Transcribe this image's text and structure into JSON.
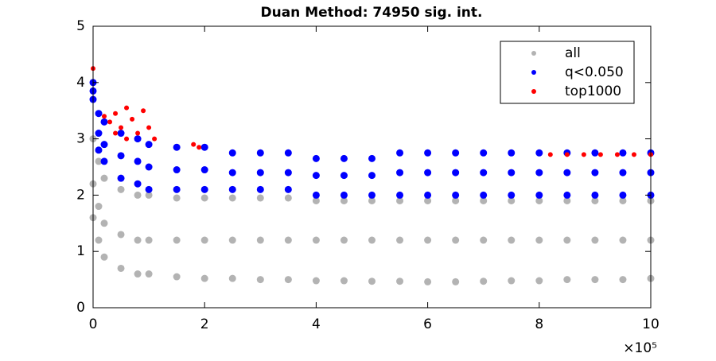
{
  "chart_data": {
    "type": "scatter",
    "title": "Duan Method: 74950 sig. int.",
    "xlim": [
      0,
      1000000
    ],
    "ylim": [
      0,
      5
    ],
    "xticks": [
      {
        "value": 0,
        "label": "0"
      },
      {
        "value": 200000,
        "label": "2"
      },
      {
        "value": 400000,
        "label": "4"
      },
      {
        "value": 600000,
        "label": "6"
      },
      {
        "value": 800000,
        "label": "8"
      },
      {
        "value": 1000000,
        "label": "10"
      }
    ],
    "yticks": [
      0,
      1,
      2,
      3,
      4,
      5
    ],
    "x_scale_label": "×10⁵",
    "legend": "upper right",
    "grid": false,
    "series": [
      {
        "name": "all",
        "color": "#b3b3b3",
        "x": [
          0,
          10000,
          20000,
          50000,
          80000,
          100000,
          150000,
          200000,
          250000,
          300000,
          350000,
          400000,
          450000,
          500000,
          550000,
          600000,
          650000,
          700000,
          750000,
          800000,
          850000,
          900000,
          950000,
          1000000,
          0,
          10000,
          20000,
          50000,
          80000,
          100000,
          150000,
          200000,
          250000,
          300000,
          350000,
          400000,
          450000,
          500000,
          550000,
          600000,
          650000,
          700000,
          750000,
          800000,
          850000,
          900000,
          950000,
          1000000,
          0,
          10000,
          20000,
          50000,
          80000,
          100000,
          150000,
          200000,
          250000,
          300000,
          350000,
          400000,
          450000,
          500000,
          550000,
          600000,
          650000,
          700000,
          750000,
          800000,
          850000,
          900000,
          950000,
          1000000
        ],
        "values": [
          1.6,
          1.2,
          0.9,
          0.7,
          0.6,
          0.6,
          0.55,
          0.52,
          0.52,
          0.5,
          0.5,
          0.48,
          0.48,
          0.47,
          0.47,
          0.46,
          0.46,
          0.47,
          0.48,
          0.48,
          0.5,
          0.5,
          0.5,
          0.52,
          2.2,
          1.8,
          1.5,
          1.3,
          1.2,
          1.2,
          1.2,
          1.2,
          1.2,
          1.2,
          1.2,
          1.2,
          1.2,
          1.2,
          1.2,
          1.2,
          1.2,
          1.2,
          1.2,
          1.2,
          1.2,
          1.2,
          1.2,
          1.2,
          3.0,
          2.6,
          2.3,
          2.1,
          2.0,
          2.0,
          1.95,
          1.95,
          1.95,
          1.95,
          1.95,
          1.9,
          1.9,
          1.9,
          1.9,
          1.9,
          1.9,
          1.9,
          1.9,
          1.9,
          1.9,
          1.9,
          1.9,
          1.9
        ]
      },
      {
        "name": "q<0.050",
        "color": "#0000ff",
        "x": [
          0,
          10000,
          20000,
          50000,
          80000,
          100000,
          150000,
          200000,
          250000,
          300000,
          350000,
          400000,
          450000,
          500000,
          550000,
          600000,
          650000,
          700000,
          750000,
          800000,
          850000,
          900000,
          950000,
          1000000,
          0,
          10000,
          20000,
          50000,
          80000,
          100000,
          150000,
          200000,
          250000,
          300000,
          350000,
          400000,
          450000,
          500000,
          550000,
          600000,
          650000,
          700000,
          750000,
          800000,
          850000,
          900000,
          950000,
          1000000,
          0,
          10000,
          20000,
          50000,
          80000,
          100000,
          150000,
          200000,
          250000,
          300000,
          350000,
          400000,
          450000,
          500000,
          550000,
          600000,
          650000,
          700000,
          750000,
          800000,
          850000,
          900000,
          950000,
          1000000
        ],
        "values": [
          4.0,
          3.45,
          3.3,
          3.1,
          3.0,
          2.9,
          2.85,
          2.85,
          2.75,
          2.75,
          2.75,
          2.65,
          2.65,
          2.65,
          2.75,
          2.75,
          2.75,
          2.75,
          2.75,
          2.75,
          2.75,
          2.75,
          2.75,
          2.75,
          3.85,
          3.1,
          2.9,
          2.7,
          2.6,
          2.5,
          2.45,
          2.45,
          2.4,
          2.4,
          2.4,
          2.35,
          2.35,
          2.35,
          2.4,
          2.4,
          2.4,
          2.4,
          2.4,
          2.4,
          2.4,
          2.4,
          2.4,
          2.4,
          3.7,
          2.8,
          2.6,
          2.3,
          2.2,
          2.1,
          2.1,
          2.1,
          2.1,
          2.1,
          2.1,
          2.0,
          2.0,
          2.0,
          2.0,
          2.0,
          2.0,
          2.0,
          2.0,
          2.0,
          2.0,
          2.0,
          2.0,
          2.0
        ]
      },
      {
        "name": "top1000",
        "color": "#ff0000",
        "x": [
          0,
          20000,
          30000,
          40000,
          50000,
          60000,
          70000,
          80000,
          90000,
          100000,
          110000,
          60000,
          40000,
          180000,
          190000,
          820000,
          850000,
          880000,
          910000,
          940000,
          970000,
          1000000
        ],
        "values": [
          4.25,
          3.4,
          3.3,
          3.45,
          3.2,
          3.55,
          3.35,
          3.1,
          3.5,
          3.2,
          3.0,
          3.0,
          3.1,
          2.9,
          2.85,
          2.72,
          2.72,
          2.72,
          2.72,
          2.72,
          2.72,
          2.72
        ]
      }
    ]
  }
}
